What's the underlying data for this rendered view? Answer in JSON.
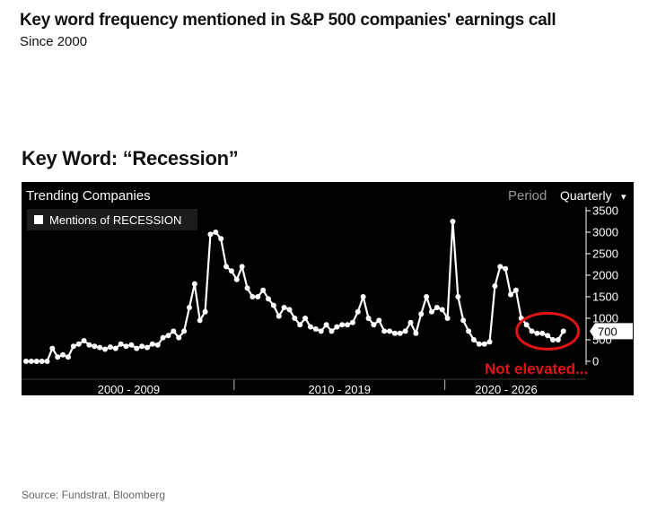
{
  "header": {
    "title": "Key word frequency mentioned in S&P 500 companies' earnings call",
    "subtitle": "Since 2000"
  },
  "keyword_label": "Key Word: “Recession”",
  "source": "Source: Fundstrat, Bloomberg",
  "panel": {
    "name": "Trending Companies",
    "period_label": "Period",
    "period_value": "Quarterly",
    "period_caret": "▾"
  },
  "chart_data": {
    "type": "line",
    "legend": "Mentions of RECESSION",
    "last_value_label": "700",
    "annotation": "Not elevated...",
    "ylim": [
      0,
      3500
    ],
    "yticks": [
      0,
      500,
      1000,
      1500,
      2000,
      2500,
      3000,
      3500
    ],
    "era_labels": [
      {
        "label": "2000 - 2009",
        "start": "2000-Q1",
        "end": "2009-Q4"
      },
      {
        "label": "2010 - 2019",
        "start": "2010-Q1",
        "end": "2019-Q4"
      },
      {
        "label": "2020 - 2026",
        "start": "2020-Q1",
        "end": "2026-Q4"
      }
    ],
    "x": [
      "2000-Q1",
      "2000-Q2",
      "2000-Q3",
      "2000-Q4",
      "2001-Q1",
      "2001-Q2",
      "2001-Q3",
      "2001-Q4",
      "2002-Q1",
      "2002-Q2",
      "2002-Q3",
      "2002-Q4",
      "2003-Q1",
      "2003-Q2",
      "2003-Q3",
      "2003-Q4",
      "2004-Q1",
      "2004-Q2",
      "2004-Q3",
      "2004-Q4",
      "2005-Q1",
      "2005-Q2",
      "2005-Q3",
      "2005-Q4",
      "2006-Q1",
      "2006-Q2",
      "2006-Q3",
      "2006-Q4",
      "2007-Q1",
      "2007-Q2",
      "2007-Q3",
      "2007-Q4",
      "2008-Q1",
      "2008-Q2",
      "2008-Q3",
      "2008-Q4",
      "2009-Q1",
      "2009-Q2",
      "2009-Q3",
      "2009-Q4",
      "2010-Q1",
      "2010-Q2",
      "2010-Q3",
      "2010-Q4",
      "2011-Q1",
      "2011-Q2",
      "2011-Q3",
      "2011-Q4",
      "2012-Q1",
      "2012-Q2",
      "2012-Q3",
      "2012-Q4",
      "2013-Q1",
      "2013-Q2",
      "2013-Q3",
      "2013-Q4",
      "2014-Q1",
      "2014-Q2",
      "2014-Q3",
      "2014-Q4",
      "2015-Q1",
      "2015-Q2",
      "2015-Q3",
      "2015-Q4",
      "2016-Q1",
      "2016-Q2",
      "2016-Q3",
      "2016-Q4",
      "2017-Q1",
      "2017-Q2",
      "2017-Q3",
      "2017-Q4",
      "2018-Q1",
      "2018-Q2",
      "2018-Q3",
      "2018-Q4",
      "2019-Q1",
      "2019-Q2",
      "2019-Q3",
      "2019-Q4",
      "2020-Q1",
      "2020-Q2",
      "2020-Q3",
      "2020-Q4",
      "2021-Q1",
      "2021-Q2",
      "2021-Q3",
      "2021-Q4",
      "2022-Q1",
      "2022-Q2",
      "2022-Q3",
      "2022-Q4",
      "2023-Q1",
      "2023-Q2",
      "2023-Q3",
      "2023-Q4",
      "2024-Q1",
      "2024-Q2",
      "2024-Q3",
      "2024-Q4",
      "2025-Q1",
      "2025-Q2",
      "2025-Q3"
    ],
    "values": [
      0,
      0,
      0,
      0,
      0,
      300,
      100,
      150,
      100,
      350,
      400,
      480,
      380,
      350,
      320,
      280,
      330,
      300,
      400,
      350,
      380,
      300,
      350,
      320,
      400,
      380,
      550,
      600,
      700,
      550,
      700,
      1250,
      1800,
      950,
      1150,
      2950,
      3000,
      2850,
      2200,
      2100,
      1900,
      2200,
      1700,
      1500,
      1500,
      1650,
      1450,
      1300,
      1050,
      1250,
      1200,
      1000,
      850,
      1000,
      800,
      750,
      700,
      850,
      700,
      800,
      850,
      850,
      900,
      1150,
      1500,
      1000,
      850,
      950,
      700,
      700,
      650,
      650,
      700,
      900,
      650,
      1100,
      1500,
      1150,
      1250,
      1200,
      1000,
      3250,
      1500,
      950,
      700,
      500,
      400,
      400,
      450,
      1750,
      2200,
      2150,
      1550,
      1650,
      1000,
      850,
      700,
      650,
      650,
      600,
      500,
      500,
      700
    ]
  },
  "colors": {
    "panel_bg": "#000000",
    "line": "#ffffff",
    "annotation": "#e01414",
    "axis_text": "#ffffff",
    "muted_text": "#9a9a9a"
  }
}
